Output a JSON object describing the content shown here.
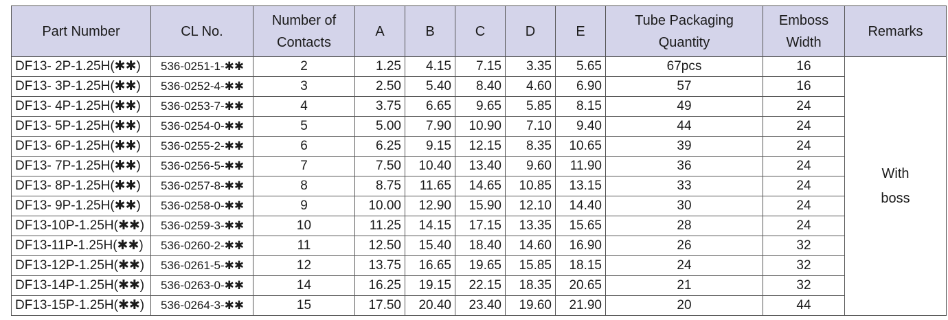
{
  "headers": {
    "part_number": "Part Number",
    "cl_no": "CL No.",
    "contacts_1": "Number of",
    "contacts_2": "Contacts",
    "a": "A",
    "b": "B",
    "c": "C",
    "d": "D",
    "e": "E",
    "tube_1": "Tube Packaging",
    "tube_2": "Quantity",
    "emboss_1": "Emboss",
    "emboss_2": "Width",
    "remarks": "Remarks"
  },
  "rows": [
    {
      "part": "DF13-  2P-1.25H(✱✱)",
      "cl": "536-0251-1-✱✱",
      "contacts": "2",
      "a": "1.25",
      "b": "4.15",
      "c": "7.15",
      "d": "3.35",
      "e": "5.65",
      "tube": "67pcs",
      "emboss": "16"
    },
    {
      "part": "DF13-  3P-1.25H(✱✱)",
      "cl": "536-0252-4-✱✱",
      "contacts": "3",
      "a": "2.50",
      "b": "5.40",
      "c": "8.40",
      "d": "4.60",
      "e": "6.90",
      "tube": "57",
      "emboss": "16"
    },
    {
      "part": "DF13-  4P-1.25H(✱✱)",
      "cl": "536-0253-7-✱✱",
      "contacts": "4",
      "a": "3.75",
      "b": "6.65",
      "c": "9.65",
      "d": "5.85",
      "e": "8.15",
      "tube": "49",
      "emboss": "24"
    },
    {
      "part": "DF13-  5P-1.25H(✱✱)",
      "cl": "536-0254-0-✱✱",
      "contacts": "5",
      "a": "5.00",
      "b": "7.90",
      "c": "10.90",
      "d": "7.10",
      "e": "9.40",
      "tube": "44",
      "emboss": "24"
    },
    {
      "part": "DF13-  6P-1.25H(✱✱)",
      "cl": "536-0255-2-✱✱",
      "contacts": "6",
      "a": "6.25",
      "b": "9.15",
      "c": "12.15",
      "d": "8.35",
      "e": "10.65",
      "tube": "39",
      "emboss": "24"
    },
    {
      "part": "DF13-  7P-1.25H(✱✱)",
      "cl": "536-0256-5-✱✱",
      "contacts": "7",
      "a": "7.50",
      "b": "10.40",
      "c": "13.40",
      "d": "9.60",
      "e": "11.90",
      "tube": "36",
      "emboss": "24"
    },
    {
      "part": "DF13-  8P-1.25H(✱✱)",
      "cl": "536-0257-8-✱✱",
      "contacts": "8",
      "a": "8.75",
      "b": "11.65",
      "c": "14.65",
      "d": "10.85",
      "e": "13.15",
      "tube": "33",
      "emboss": "24"
    },
    {
      "part": "DF13-  9P-1.25H(✱✱)",
      "cl": "536-0258-0-✱✱",
      "contacts": "9",
      "a": "10.00",
      "b": "12.90",
      "c": "15.90",
      "d": "12.10",
      "e": "14.40",
      "tube": "30",
      "emboss": "24"
    },
    {
      "part": "DF13-10P-1.25H(✱✱)",
      "cl": "536-0259-3-✱✱",
      "contacts": "10",
      "a": "11.25",
      "b": "14.15",
      "c": "17.15",
      "d": "13.35",
      "e": "15.65",
      "tube": "28",
      "emboss": "24"
    },
    {
      "part": "DF13-11P-1.25H(✱✱)",
      "cl": "536-0260-2-✱✱",
      "contacts": "11",
      "a": "12.50",
      "b": "15.40",
      "c": "18.40",
      "d": "14.60",
      "e": "16.90",
      "tube": "26",
      "emboss": "32"
    },
    {
      "part": "DF13-12P-1.25H(✱✱)",
      "cl": "536-0261-5-✱✱",
      "contacts": "12",
      "a": "13.75",
      "b": "16.65",
      "c": "19.65",
      "d": "15.85",
      "e": "18.15",
      "tube": "24",
      "emboss": "32"
    },
    {
      "part": "DF13-14P-1.25H(✱✱)",
      "cl": "536-0263-0-✱✱",
      "contacts": "14",
      "a": "16.25",
      "b": "19.15",
      "c": "22.15",
      "d": "18.35",
      "e": "20.65",
      "tube": "21",
      "emboss": "32"
    },
    {
      "part": "DF13-15P-1.25H(✱✱)",
      "cl": "536-0264-3-✱✱",
      "contacts": "15",
      "a": "17.50",
      "b": "20.40",
      "c": "23.40",
      "d": "19.60",
      "e": "21.90",
      "tube": "20",
      "emboss": "44"
    }
  ],
  "remarks": {
    "line1": "With",
    "line2": "boss"
  },
  "colors": {
    "header_bg": "#d4d4ea",
    "border": "#555555"
  }
}
